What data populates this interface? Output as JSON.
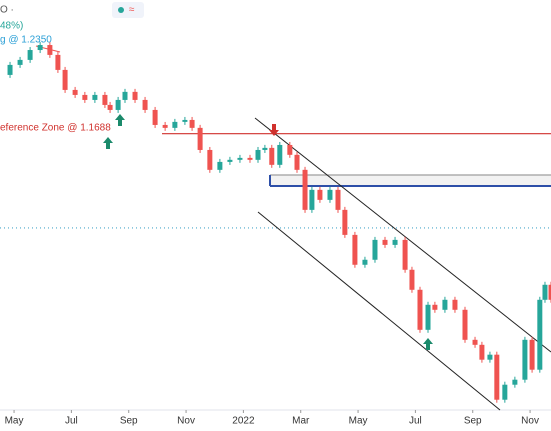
{
  "chart_data": {
    "type": "candle-close",
    "header": "O ·",
    "change_label": "48%)",
    "annotations": [
      {
        "text": "g @ 1.2350",
        "color": "#2a9fd6"
      },
      {
        "text": "eference Zone @ 1.1688",
        "color": "#d0312d"
      }
    ],
    "levels": [
      {
        "value": 1.1688,
        "color": "#d0312d"
      },
      {
        "value": 1.1391,
        "color": "#9e9e9e"
      },
      {
        "value": 1.1312,
        "color": "#2d4fa8"
      },
      {
        "value": 1.101,
        "color": "#4aa8c9"
      }
    ],
    "up_color": "#26a69a",
    "down_color": "#ef5350",
    "xlim": [
      3.51,
      22.73
    ],
    "ylim": [
      0.97,
      1.265
    ],
    "xticks": [
      {
        "value": 4,
        "label": "May"
      },
      {
        "value": 6,
        "label": "Jul"
      },
      {
        "value": 8,
        "label": "Sep"
      },
      {
        "value": 10,
        "label": "Nov"
      },
      {
        "value": 12,
        "label": "2022"
      },
      {
        "value": 14,
        "label": "Mar"
      },
      {
        "value": 16,
        "label": "May"
      },
      {
        "value": 18,
        "label": "Jul"
      },
      {
        "value": 20,
        "label": "Sep"
      },
      {
        "value": 22,
        "label": "Nov"
      }
    ],
    "x": [
      3.51,
      3.86,
      4.21,
      4.56,
      4.91,
      5.25,
      5.53,
      5.78,
      6.13,
      6.47,
      6.82,
      7.17,
      7.35,
      7.63,
      7.87,
      8.22,
      8.57,
      8.92,
      9.27,
      9.61,
      9.96,
      10.21,
      10.49,
      10.83,
      11.18,
      11.53,
      11.88,
      12.23,
      12.51,
      12.75,
      12.99,
      13.27,
      13.62,
      13.87,
      14.15,
      14.39,
      14.67,
      15.02,
      15.3,
      15.54,
      15.89,
      16.24,
      16.59,
      16.94,
      17.29,
      17.64,
      17.88,
      18.16,
      18.44,
      18.68,
      19.03,
      19.38,
      19.73,
      20.08,
      20.32,
      20.6,
      20.84,
      21.12,
      21.47,
      21.82,
      22.07,
      22.34,
      22.52,
      22.73
    ],
    "series": [
      {
        "values": [
          1.2111,
          1.2183,
          1.2219,
          1.229,
          1.2326,
          1.2255,
          1.2147,
          1.2003,
          1.1967,
          1.1931,
          1.1967,
          1.1895,
          1.1859,
          1.1931,
          1.1989,
          1.1931,
          1.1859,
          1.1751,
          1.173,
          1.1773,
          1.1787,
          1.173,
          1.1571,
          1.1428,
          1.1485,
          1.15,
          1.1514,
          1.15,
          1.1571,
          1.1586,
          1.1464,
          1.1607,
          1.1536,
          1.1428,
          1.114,
          1.1284,
          1.1212,
          1.1284,
          1.114,
          1.096,
          1.0745,
          1.0781,
          1.0924,
          1.0888,
          1.0924,
          1.0709,
          1.0565,
          1.0277,
          1.0457,
          1.0421,
          1.0493,
          1.0421,
          1.0205,
          1.0169,
          1.0062,
          1.0098,
          0.9774,
          0.9882,
          0.9918,
          1.0205,
          0.999,
          1.0493,
          1.0601,
          1.0493
        ]
      }
    ]
  }
}
